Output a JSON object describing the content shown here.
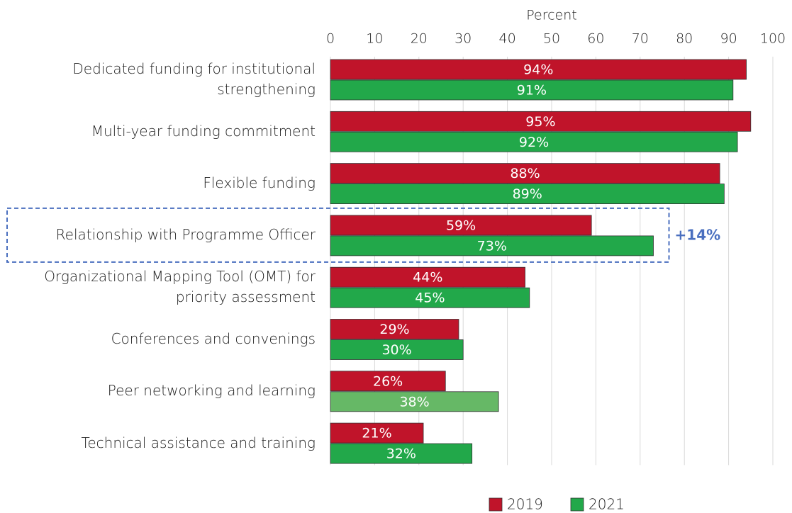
{
  "chart_data": {
    "type": "hbar",
    "xlabel": "Percent",
    "categories": [
      "Dedicated funding for institutional\nstrengthening",
      "Multi-year funding commitment",
      "Flexible funding",
      "Relationship with Programme Officer",
      "Organizational Mapping Tool (OMT) for\npriority assessment",
      "Conferences and convenings",
      "Peer networking and learning",
      "Technical assistance and training"
    ],
    "series": [
      {
        "name": "2019",
        "color": "#c0142a",
        "values": [
          94,
          95,
          88,
          59,
          44,
          29,
          26,
          21
        ],
        "value_labels": [
          "94%",
          "95%",
          "88%",
          "59%",
          "44%",
          "29%",
          "26%",
          "21%"
        ]
      },
      {
        "name": "2021",
        "color": "#22a84a",
        "colors": [
          "#22a84a",
          "#22a84a",
          "#22a84a",
          "#22a84a",
          "#22a84a",
          "#22a84a",
          "#66b866",
          "#22a84a"
        ],
        "values": [
          91,
          92,
          89,
          73,
          45,
          30,
          38,
          32
        ],
        "value_labels": [
          "91%",
          "92%",
          "89%",
          "73%",
          "45%",
          "30%",
          "38%",
          "32%"
        ]
      }
    ],
    "xlim": [
      0,
      100
    ],
    "xticks": [
      0,
      10,
      20,
      30,
      40,
      50,
      60,
      70,
      80,
      90,
      100
    ],
    "grid": true,
    "legend": "bottom",
    "annotations": [
      {
        "text": "+14%",
        "category": "Relationship with Programme Officer",
        "color": "#4a6fbf"
      }
    ]
  }
}
